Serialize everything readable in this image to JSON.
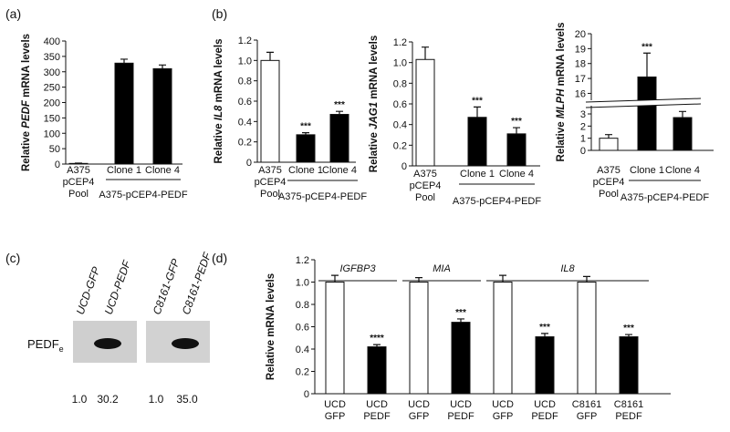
{
  "panel_labels": [
    "(a)",
    "(b)",
    "(c)",
    "(d)"
  ],
  "chart_data": [
    {
      "type": "bar",
      "ylabel": [
        {
          "text": "Relative ",
          "italic": false
        },
        {
          "text": "PEDF",
          "italic": true
        },
        {
          "text": " mRNA levels",
          "italic": false
        }
      ],
      "categories": [
        [
          "A375",
          "pCEP4",
          "Pool"
        ],
        [
          "Clone 1"
        ],
        [
          "Clone 4"
        ]
      ],
      "group": {
        "label": "A375-pCEP4-PEDF",
        "from": 1,
        "to": 2
      },
      "values": [
        2,
        328,
        310
      ],
      "errors": [
        1,
        13,
        12
      ],
      "colors": [
        "#ffffff",
        "#000000",
        "#000000"
      ],
      "annotations": [
        null,
        null,
        null
      ],
      "ylim": [
        0,
        400
      ],
      "yticks": [
        0,
        50,
        100,
        150,
        200,
        250,
        300,
        350,
        400
      ]
    },
    {
      "type": "bar",
      "ylabel": [
        {
          "text": "Relative ",
          "italic": false
        },
        {
          "text": "IL8",
          "italic": true
        },
        {
          "text": " mRNA levels",
          "italic": false
        }
      ],
      "categories": [
        [
          "A375",
          "pCEP4",
          "Pool"
        ],
        [
          "Clone 1"
        ],
        [
          "Clone 4"
        ]
      ],
      "group": {
        "label": "A375-pCEP4-PEDF",
        "from": 1,
        "to": 2
      },
      "values": [
        1.0,
        0.27,
        0.47
      ],
      "errors": [
        0.08,
        0.02,
        0.03
      ],
      "colors": [
        "#ffffff",
        "#000000",
        "#000000"
      ],
      "annotations": [
        null,
        "***",
        "***"
      ],
      "ylim": [
        0,
        1.2
      ],
      "yticks": [
        0,
        0.2,
        0.4,
        0.6,
        0.8,
        {
          "value": 1,
          "label": "1.0"
        },
        1.2
      ]
    },
    {
      "type": "bar",
      "ylabel": [
        {
          "text": "Relative ",
          "italic": false
        },
        {
          "text": "JAG1",
          "italic": true
        },
        {
          "text": " mRNA levels",
          "italic": false
        }
      ],
      "categories": [
        [
          "A375",
          "pCEP4",
          "Pool"
        ],
        [
          "Clone 1"
        ],
        [
          "Clone 4"
        ]
      ],
      "group": {
        "label": "A375-pCEP4-PEDF",
        "from": 1,
        "to": 2
      },
      "values": [
        1.03,
        0.47,
        0.31
      ],
      "errors": [
        0.12,
        0.1,
        0.06
      ],
      "colors": [
        "#ffffff",
        "#000000",
        "#000000"
      ],
      "annotations": [
        null,
        "***",
        "***"
      ],
      "ylim": [
        0,
        1.2
      ],
      "yticks": [
        0,
        0.2,
        0.4,
        0.6,
        0.8,
        {
          "value": 1,
          "label": "1.0"
        },
        1.2
      ]
    },
    {
      "type": "bar",
      "ylabel": [
        {
          "text": "Relative ",
          "italic": false
        },
        {
          "text": "MLPH",
          "italic": true
        },
        {
          "text": " mRNA levels",
          "italic": false
        }
      ],
      "categories": [
        [
          "A375",
          "pCEP4",
          "Pool"
        ],
        [
          "Clone 1"
        ],
        [
          "Clone 4"
        ]
      ],
      "group": {
        "label": "A375-pCEP4-PEDF",
        "from": 1,
        "to": 2
      },
      "values": [
        1.0,
        17.1,
        2.7
      ],
      "errors": [
        0.3,
        1.6,
        0.5
      ],
      "colors": [
        "#ffffff",
        "#000000",
        "#000000"
      ],
      "annotations": [
        null,
        "***",
        "*"
      ],
      "ylim": [
        0,
        20
      ],
      "ybreak": [
        3.6,
        15.6
      ],
      "yticks": [
        0,
        1,
        2,
        3,
        16,
        17,
        18,
        19,
        20
      ]
    },
    {
      "type": "bar",
      "ylabel": [
        {
          "text": "Relative mRNA levels",
          "italic": false
        }
      ],
      "categories": [
        [
          "UCD",
          "GFP"
        ],
        [
          "UCD",
          "PEDF"
        ],
        [
          "UCD",
          "GFP"
        ],
        [
          "UCD",
          "PEDF"
        ],
        [
          "UCD",
          "GFP"
        ],
        [
          "UCD",
          "PEDF"
        ],
        [
          "C8161",
          "GFP"
        ],
        [
          "C8161",
          "PEDF"
        ]
      ],
      "top_groups": [
        {
          "label": "IGFBP3",
          "from": 0,
          "to": 1
        },
        {
          "label": "MIA",
          "from": 2,
          "to": 3
        },
        {
          "label": "IL8",
          "from": 4,
          "to": 7
        }
      ],
      "values": [
        1.0,
        0.42,
        1.0,
        0.64,
        1.0,
        0.51,
        1.0,
        0.51
      ],
      "errors": [
        0.06,
        0.02,
        0.04,
        0.03,
        0.06,
        0.03,
        0.05,
        0.02
      ],
      "colors": [
        "#ffffff",
        "#000000",
        "#ffffff",
        "#000000",
        "#ffffff",
        "#000000",
        "#ffffff",
        "#000000"
      ],
      "annotations": [
        null,
        "****",
        null,
        "***",
        null,
        "***",
        null,
        "***"
      ],
      "ylim": [
        0,
        1.2
      ],
      "yticks": [
        0,
        0.2,
        0.4,
        0.6,
        0.8,
        {
          "value": 1,
          "label": "1.0"
        },
        1.2
      ]
    }
  ],
  "blot": {
    "lanes": [
      "UCD-GFP",
      "UCD-PEDF",
      "C8161-GFP",
      "C8161-PEDF"
    ],
    "band_label": "PEDF",
    "band_label_subscript": "e",
    "quantities": [
      "1.0",
      "30.2",
      "1.0",
      "35.0"
    ]
  }
}
